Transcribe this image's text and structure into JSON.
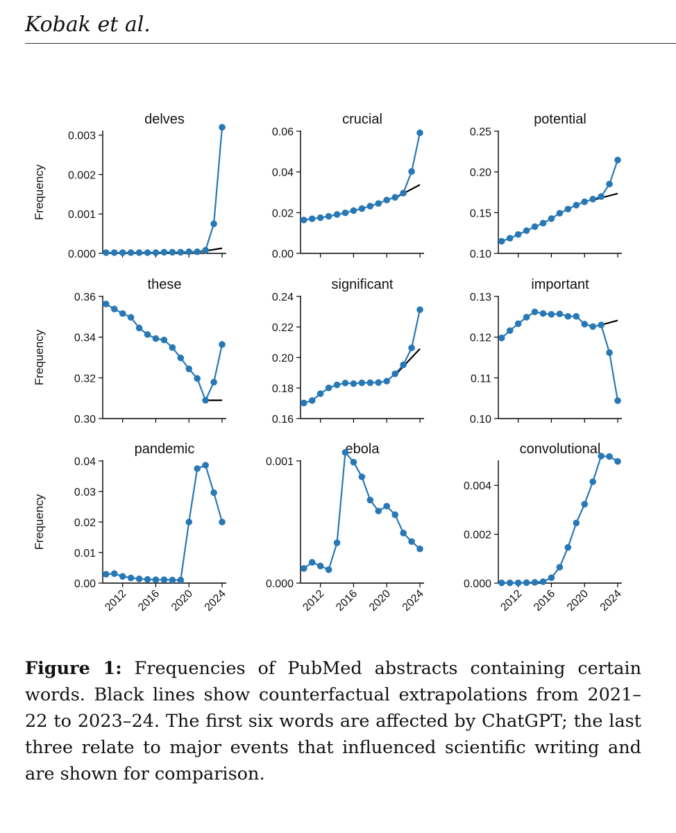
{
  "header": {
    "running_head": "Kobak et al."
  },
  "figure": {
    "ylabel": "Frequency",
    "xtick_labels": [
      "2012",
      "2016",
      "2020",
      "2024"
    ],
    "line_color": "#2878b5",
    "extrapolation_color": "#000000"
  },
  "caption": {
    "label": "Figure 1:",
    "text": " Frequencies of PubMed abstracts containing certain words. Black lines show counterfactual extrapolations from 2021–22 to 2023–24. The first six words are affected by ChatGPT; the last three relate to major events that influenced scientific writing and are shown for comparison."
  },
  "chart_data": [
    {
      "type": "line",
      "title": "delves",
      "xlabel": "",
      "ylabel": "Frequency",
      "x": [
        2010,
        2011,
        2012,
        2013,
        2014,
        2015,
        2016,
        2017,
        2018,
        2019,
        2020,
        2021,
        2022,
        2023,
        2024
      ],
      "values": [
        2e-05,
        2e-05,
        2e-05,
        2e-05,
        2e-05,
        2e-05,
        2e-05,
        3e-05,
        3e-05,
        3e-05,
        4e-05,
        4e-05,
        8e-05,
        0.00075,
        0.0032
      ],
      "extrapolation": {
        "x": [
          2021,
          2024
        ],
        "values": [
          3e-05,
          0.00013
        ]
      },
      "ylim": [
        0,
        0.0031
      ],
      "yticks": [
        0,
        0.001,
        0.002,
        0.003
      ],
      "ytick_labels": [
        "0.000",
        "0.001",
        "0.002",
        "0.003"
      ]
    },
    {
      "type": "line",
      "title": "crucial",
      "xlabel": "",
      "ylabel": "",
      "x": [
        2010,
        2011,
        2012,
        2013,
        2014,
        2015,
        2016,
        2017,
        2018,
        2019,
        2020,
        2021,
        2022,
        2023,
        2024
      ],
      "values": [
        0.0164,
        0.017,
        0.0175,
        0.0182,
        0.0191,
        0.0199,
        0.021,
        0.022,
        0.0232,
        0.0245,
        0.0262,
        0.0275,
        0.0296,
        0.0402,
        0.0592
      ],
      "extrapolation": {
        "x": [
          2021,
          2024
        ],
        "values": [
          0.0272,
          0.0337
        ]
      },
      "ylim": [
        0,
        0.06
      ],
      "yticks": [
        0,
        0.02,
        0.04,
        0.06
      ],
      "ytick_labels": [
        "0.00",
        "0.02",
        "0.04",
        "0.06"
      ]
    },
    {
      "type": "line",
      "title": "potential",
      "xlabel": "",
      "ylabel": "",
      "x": [
        2010,
        2011,
        2012,
        2013,
        2014,
        2015,
        2016,
        2017,
        2018,
        2019,
        2020,
        2021,
        2022,
        2023,
        2024
      ],
      "values": [
        0.1149,
        0.1186,
        0.1232,
        0.1279,
        0.1328,
        0.1371,
        0.1427,
        0.1493,
        0.1544,
        0.1592,
        0.1633,
        0.1666,
        0.1697,
        0.1851,
        0.2146
      ],
      "extrapolation": {
        "x": [
          2021,
          2024
        ],
        "values": [
          0.1655,
          0.1735
        ]
      },
      "ylim": [
        0.1,
        0.25
      ],
      "yticks": [
        0.1,
        0.15,
        0.2,
        0.25
      ],
      "ytick_labels": [
        "0.10",
        "0.15",
        "0.20",
        "0.25"
      ]
    },
    {
      "type": "line",
      "title": "these",
      "xlabel": "",
      "ylabel": "Frequency",
      "x": [
        2010,
        2011,
        2012,
        2013,
        2014,
        2015,
        2016,
        2017,
        2018,
        2019,
        2020,
        2021,
        2022,
        2023,
        2024
      ],
      "values": [
        0.3563,
        0.3538,
        0.3516,
        0.3497,
        0.3445,
        0.3413,
        0.3393,
        0.3386,
        0.3349,
        0.3298,
        0.3244,
        0.3197,
        0.309,
        0.3179,
        0.3364
      ],
      "extrapolation": {
        "x": [
          2022,
          2024
        ],
        "values": [
          0.309,
          0.309
        ]
      },
      "ylim": [
        0.3,
        0.36
      ],
      "yticks": [
        0.3,
        0.32,
        0.34,
        0.36
      ],
      "ytick_labels": [
        "0.30",
        "0.32",
        "0.34",
        "0.36"
      ]
    },
    {
      "type": "line",
      "title": "significant",
      "xlabel": "",
      "ylabel": "",
      "x": [
        2010,
        2011,
        2012,
        2013,
        2014,
        2015,
        2016,
        2017,
        2018,
        2019,
        2020,
        2021,
        2022,
        2023,
        2024
      ],
      "values": [
        0.1702,
        0.1718,
        0.1763,
        0.1801,
        0.1821,
        0.1833,
        0.1829,
        0.1834,
        0.1835,
        0.1836,
        0.1845,
        0.1893,
        0.1952,
        0.2063,
        0.2313
      ],
      "extrapolation": {
        "x": [
          2021,
          2024
        ],
        "values": [
          0.1884,
          0.2057
        ]
      },
      "ylim": [
        0.16,
        0.24
      ],
      "yticks": [
        0.16,
        0.18,
        0.2,
        0.22,
        0.24
      ],
      "ytick_labels": [
        "0.16",
        "0.18",
        "0.20",
        "0.22",
        "0.24"
      ]
    },
    {
      "type": "line",
      "title": "important",
      "xlabel": "",
      "ylabel": "",
      "x": [
        2010,
        2011,
        2012,
        2013,
        2014,
        2015,
        2016,
        2017,
        2018,
        2019,
        2020,
        2021,
        2022,
        2023,
        2024
      ],
      "values": [
        0.1198,
        0.1216,
        0.1233,
        0.1249,
        0.1262,
        0.1258,
        0.1256,
        0.1257,
        0.1251,
        0.1251,
        0.1232,
        0.1226,
        0.123,
        0.1162,
        0.1044
      ],
      "extrapolation": {
        "x": [
          2022,
          2024
        ],
        "values": [
          0.123,
          0.1241
        ]
      },
      "ylim": [
        0.1,
        0.13
      ],
      "yticks": [
        0.1,
        0.11,
        0.12,
        0.13
      ],
      "ytick_labels": [
        "0.10",
        "0.11",
        "0.12",
        "0.13"
      ]
    },
    {
      "type": "line",
      "title": "pandemic",
      "xlabel": "",
      "ylabel": "Frequency",
      "x": [
        2010,
        2011,
        2012,
        2013,
        2014,
        2015,
        2016,
        2017,
        2018,
        2019,
        2020,
        2021,
        2022,
        2023,
        2024
      ],
      "values": [
        0.0029,
        0.0031,
        0.0022,
        0.0017,
        0.0014,
        0.0012,
        0.0011,
        0.0011,
        0.001,
        0.001,
        0.02,
        0.0375,
        0.0386,
        0.0296,
        0.02
      ],
      "ylim": [
        0,
        0.04
      ],
      "yticks": [
        0,
        0.01,
        0.02,
        0.03,
        0.04
      ],
      "ytick_labels": [
        "0.00",
        "0.01",
        "0.02",
        "0.03",
        "0.04"
      ]
    },
    {
      "type": "line",
      "title": "ebola",
      "xlabel": "",
      "ylabel": "",
      "x": [
        2010,
        2011,
        2012,
        2013,
        2014,
        2015,
        2016,
        2017,
        2018,
        2019,
        2020,
        2021,
        2022,
        2023,
        2024
      ],
      "values": [
        0.00012,
        0.00017,
        0.00014,
        0.00011,
        0.00033,
        0.00107,
        0.00099,
        0.00087,
        0.00068,
        0.00059,
        0.00063,
        0.00056,
        0.00041,
        0.00034,
        0.00028
      ],
      "ylim": [
        0,
        0.001
      ],
      "yticks": [
        0,
        0.001
      ],
      "ytick_labels": [
        "0.000",
        "0.001"
      ]
    },
    {
      "type": "line",
      "title": "convolutional",
      "xlabel": "",
      "ylabel": "",
      "x": [
        2010,
        2011,
        2012,
        2013,
        2014,
        2015,
        2016,
        2017,
        2018,
        2019,
        2020,
        2021,
        2022,
        2023,
        2024
      ],
      "values": [
        1e-05,
        1e-05,
        1e-05,
        2e-05,
        3e-05,
        6e-05,
        0.00022,
        0.00065,
        0.00146,
        0.00246,
        0.00323,
        0.00415,
        0.0052,
        0.00518,
        0.00498
      ],
      "ylim": [
        0,
        0.005
      ],
      "yticks": [
        0,
        0.002,
        0.004
      ],
      "ytick_labels": [
        "0.000",
        "0.002",
        "0.004"
      ]
    }
  ]
}
